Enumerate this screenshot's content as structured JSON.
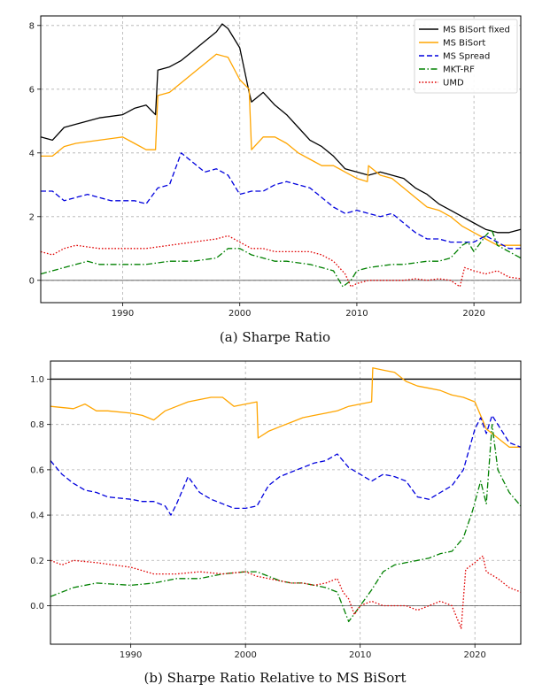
{
  "chart_data": [
    {
      "type": "line",
      "title": "",
      "caption": "(a) Sharpe Ratio",
      "xlim": [
        1983,
        2024
      ],
      "ylim": [
        -0.7,
        8.3
      ],
      "xticks": [
        1990,
        2000,
        2010,
        2020
      ],
      "yticks": [
        0,
        2,
        4,
        6,
        8
      ],
      "grid": true,
      "hlines": [
        {
          "y": 0,
          "color": "#555555",
          "width": 0.8
        }
      ],
      "legend": {
        "placement": "top-right"
      },
      "series": [
        {
          "name": "MS BiSort fixed",
          "color": "#000000",
          "dash": "solid",
          "x": [
            1983,
            1984,
            1985,
            1986,
            1988,
            1990,
            1991,
            1992,
            1992.8,
            1993,
            1994,
            1995,
            1996,
            1997,
            1998,
            1998.5,
            1999,
            2000,
            2000.8,
            2001,
            2002,
            2003,
            2004,
            2005,
            2006,
            2007,
            2008,
            2009,
            2010,
            2011,
            2012,
            2013,
            2014,
            2015,
            2016,
            2017,
            2018,
            2019,
            2020,
            2021,
            2022,
            2023,
            2024
          ],
          "y": [
            4.5,
            4.4,
            4.8,
            4.9,
            5.1,
            5.2,
            5.4,
            5.5,
            5.2,
            6.6,
            6.7,
            6.9,
            7.2,
            7.5,
            7.8,
            8.05,
            7.9,
            7.3,
            5.9,
            5.6,
            5.9,
            5.5,
            5.2,
            4.8,
            4.4,
            4.2,
            3.9,
            3.5,
            3.4,
            3.3,
            3.4,
            3.3,
            3.2,
            2.9,
            2.7,
            2.4,
            2.2,
            2.0,
            1.8,
            1.6,
            1.5,
            1.5,
            1.6
          ]
        },
        {
          "name": "MS BiSort",
          "color": "#ffa500",
          "dash": "solid",
          "x": [
            1983,
            1984,
            1985,
            1986,
            1988,
            1990,
            1991,
            1992,
            1992.8,
            1993,
            1994,
            1995,
            1996,
            1997,
            1998,
            1999,
            2000,
            2000.8,
            2001,
            2002,
            2003,
            2004,
            2005,
            2006,
            2007,
            2008,
            2009,
            2010,
            2010.9,
            2011,
            2012,
            2013,
            2014,
            2015,
            2016,
            2017,
            2018,
            2019,
            2020,
            2021,
            2022,
            2023,
            2024
          ],
          "y": [
            3.9,
            3.9,
            4.2,
            4.3,
            4.4,
            4.5,
            4.3,
            4.1,
            4.1,
            5.8,
            5.9,
            6.2,
            6.5,
            6.8,
            7.1,
            7.0,
            6.3,
            6.0,
            4.1,
            4.5,
            4.5,
            4.3,
            4.0,
            3.8,
            3.6,
            3.6,
            3.4,
            3.2,
            3.1,
            3.6,
            3.3,
            3.2,
            2.9,
            2.6,
            2.3,
            2.2,
            2.0,
            1.7,
            1.5,
            1.3,
            1.1,
            1.1,
            1.1
          ]
        },
        {
          "name": "MS Spread",
          "color": "#0000dd",
          "dash": "dashed",
          "x": [
            1983,
            1984,
            1985,
            1987,
            1989,
            1991,
            1992,
            1993,
            1994,
            1995,
            1996,
            1997,
            1998,
            1999,
            2000,
            2001,
            2002,
            2003,
            2004,
            2005,
            2006,
            2007,
            2008,
            2009,
            2010,
            2011,
            2012,
            2013,
            2014,
            2015,
            2016,
            2017,
            2018,
            2019,
            2020,
            2021,
            2022,
            2023,
            2024
          ],
          "y": [
            2.8,
            2.8,
            2.5,
            2.7,
            2.5,
            2.5,
            2.4,
            2.9,
            3.0,
            4.0,
            3.7,
            3.4,
            3.5,
            3.3,
            2.7,
            2.8,
            2.8,
            3.0,
            3.1,
            3.0,
            2.9,
            2.6,
            2.3,
            2.1,
            2.2,
            2.1,
            2.0,
            2.1,
            1.8,
            1.5,
            1.3,
            1.3,
            1.2,
            1.2,
            1.2,
            1.4,
            1.2,
            1.0,
            1.0
          ]
        },
        {
          "name": "MKT-RF",
          "color": "#008000",
          "dash": "dashdot",
          "x": [
            1983,
            1984,
            1985,
            1986,
            1987,
            1988,
            1990,
            1992,
            1994,
            1996,
            1998,
            1999,
            2000,
            2001,
            2002,
            2003,
            2004,
            2005,
            2006,
            2007,
            2008,
            2008.8,
            2009.5,
            2010,
            2011,
            2012,
            2013,
            2014,
            2015,
            2016,
            2017,
            2018,
            2019,
            2019.5,
            2020,
            2021,
            2021.5,
            2022,
            2023,
            2024
          ],
          "y": [
            0.2,
            0.3,
            0.4,
            0.5,
            0.6,
            0.5,
            0.5,
            0.5,
            0.6,
            0.6,
            0.7,
            1.0,
            1.0,
            0.8,
            0.7,
            0.6,
            0.6,
            0.55,
            0.5,
            0.4,
            0.3,
            -0.2,
            0.0,
            0.3,
            0.4,
            0.45,
            0.5,
            0.5,
            0.55,
            0.6,
            0.6,
            0.7,
            1.1,
            1.2,
            0.9,
            1.4,
            1.6,
            1.1,
            0.9,
            0.7
          ]
        },
        {
          "name": "UMD",
          "color": "#e00000",
          "dash": "dotted",
          "x": [
            1983,
            1984,
            1985,
            1986,
            1988,
            1990,
            1992,
            1994,
            1996,
            1998,
            1999,
            2000,
            2001,
            2002,
            2003,
            2004,
            2005,
            2006,
            2007,
            2008,
            2008.5,
            2009,
            2009.5,
            2010,
            2011,
            2012,
            2013,
            2014,
            2015,
            2016,
            2017,
            2018,
            2018.8,
            2019.2,
            2020,
            2021,
            2022,
            2023,
            2024
          ],
          "y": [
            0.9,
            0.8,
            1.0,
            1.1,
            1.0,
            1.0,
            1.0,
            1.1,
            1.2,
            1.3,
            1.4,
            1.2,
            1.0,
            1.0,
            0.9,
            0.9,
            0.9,
            0.9,
            0.8,
            0.6,
            0.4,
            0.2,
            -0.2,
            -0.1,
            0.0,
            0.0,
            0.0,
            0.0,
            0.05,
            0.0,
            0.05,
            0.0,
            -0.2,
            0.4,
            0.3,
            0.2,
            0.3,
            0.1,
            0.05
          ]
        }
      ]
    },
    {
      "type": "line",
      "title": "",
      "caption": "(b) Sharpe Ratio Relative to MS BiSort",
      "xlim": [
        1983,
        2024
      ],
      "ylim": [
        -0.17,
        1.08
      ],
      "xticks": [
        1990,
        2000,
        2010,
        2020
      ],
      "yticks": [
        0.0,
        0.2,
        0.4,
        0.6,
        0.8,
        1.0
      ],
      "ytick_labels": [
        "0.0",
        "0.2",
        "0.4",
        "0.6",
        "0.8",
        "1.0"
      ],
      "grid": true,
      "hlines": [
        {
          "y": 1.0,
          "color": "#000000",
          "width": 1.4
        },
        {
          "y": 0.0,
          "color": "#555555",
          "width": 0.8
        }
      ],
      "series": [
        {
          "name": "MS BiSort",
          "color": "#ffa500",
          "dash": "solid",
          "x": [
            1983,
            1985,
            1986,
            1987,
            1988,
            1990,
            1991,
            1992,
            1993,
            1994,
            1995,
            1996,
            1997,
            1998,
            1999,
            2000,
            2001,
            2001.1,
            2002,
            2003,
            2004,
            2005,
            2006,
            2007,
            2008,
            2009,
            2010,
            2011,
            2011.1,
            2012,
            2013,
            2014,
            2015,
            2016,
            2017,
            2018,
            2019,
            2020,
            2021,
            2022,
            2023,
            2024
          ],
          "y": [
            0.88,
            0.87,
            0.89,
            0.86,
            0.86,
            0.85,
            0.84,
            0.82,
            0.86,
            0.88,
            0.9,
            0.91,
            0.92,
            0.92,
            0.88,
            0.89,
            0.9,
            0.74,
            0.77,
            0.79,
            0.81,
            0.83,
            0.84,
            0.85,
            0.86,
            0.88,
            0.89,
            0.9,
            1.05,
            1.04,
            1.03,
            0.99,
            0.97,
            0.96,
            0.95,
            0.93,
            0.92,
            0.9,
            0.78,
            0.74,
            0.7,
            0.7
          ]
        },
        {
          "name": "MS Spread",
          "color": "#0000dd",
          "dash": "dashed",
          "x": [
            1983,
            1984,
            1985,
            1986,
            1987,
            1988,
            1990,
            1991,
            1992,
            1993,
            1993.5,
            1994,
            1995,
            1996,
            1997,
            1998,
            1999,
            2000,
            2001,
            2002,
            2003,
            2004,
            2005,
            2006,
            2007,
            2008,
            2009,
            2010,
            2011,
            2012,
            2013,
            2014,
            2015,
            2016,
            2017,
            2018,
            2019,
            2020,
            2020.5,
            2021,
            2021.5,
            2022,
            2023,
            2024
          ],
          "y": [
            0.64,
            0.58,
            0.54,
            0.51,
            0.5,
            0.48,
            0.47,
            0.46,
            0.46,
            0.44,
            0.4,
            0.45,
            0.57,
            0.5,
            0.47,
            0.45,
            0.43,
            0.43,
            0.44,
            0.53,
            0.57,
            0.59,
            0.61,
            0.63,
            0.64,
            0.67,
            0.61,
            0.58,
            0.55,
            0.58,
            0.57,
            0.55,
            0.48,
            0.47,
            0.5,
            0.53,
            0.6,
            0.78,
            0.83,
            0.76,
            0.84,
            0.8,
            0.72,
            0.7
          ]
        },
        {
          "name": "MKT-RF",
          "color": "#008000",
          "dash": "dashdot",
          "x": [
            1983,
            1985,
            1987,
            1990,
            1992,
            1994,
            1996,
            1998,
            2000,
            2001,
            2002,
            2003,
            2004,
            2005,
            2006,
            2007,
            2008,
            2009,
            2010,
            2011,
            2012,
            2013,
            2014,
            2015,
            2016,
            2017,
            2018,
            2019,
            2019.8,
            2020.5,
            2021,
            2021.5,
            2022,
            2023,
            2024
          ],
          "y": [
            0.04,
            0.08,
            0.1,
            0.09,
            0.1,
            0.12,
            0.12,
            0.14,
            0.15,
            0.15,
            0.13,
            0.11,
            0.1,
            0.1,
            0.09,
            0.08,
            0.06,
            -0.07,
            0.0,
            0.07,
            0.15,
            0.18,
            0.19,
            0.2,
            0.21,
            0.23,
            0.24,
            0.3,
            0.42,
            0.55,
            0.45,
            0.8,
            0.6,
            0.5,
            0.44
          ]
        },
        {
          "name": "UMD",
          "color": "#e00000",
          "dash": "dotted",
          "x": [
            1983,
            1984,
            1985,
            1987,
            1990,
            1992,
            1994,
            1996,
            1998,
            2000,
            2001,
            2002,
            2003,
            2004,
            2005,
            2006,
            2007,
            2008,
            2008.5,
            2009,
            2009.5,
            2010,
            2011,
            2012,
            2013,
            2014,
            2015,
            2016,
            2017,
            2018,
            2018.8,
            2019.2,
            2020,
            2020.7,
            2021,
            2022,
            2023,
            2024
          ],
          "y": [
            0.2,
            0.18,
            0.2,
            0.19,
            0.17,
            0.14,
            0.14,
            0.15,
            0.14,
            0.15,
            0.13,
            0.12,
            0.11,
            0.1,
            0.1,
            0.09,
            0.1,
            0.12,
            0.06,
            0.03,
            -0.04,
            0.0,
            0.02,
            0.0,
            0.0,
            0.0,
            -0.02,
            0.0,
            0.02,
            0.0,
            -0.1,
            0.16,
            0.19,
            0.22,
            0.15,
            0.12,
            0.08,
            0.06
          ]
        }
      ]
    }
  ]
}
